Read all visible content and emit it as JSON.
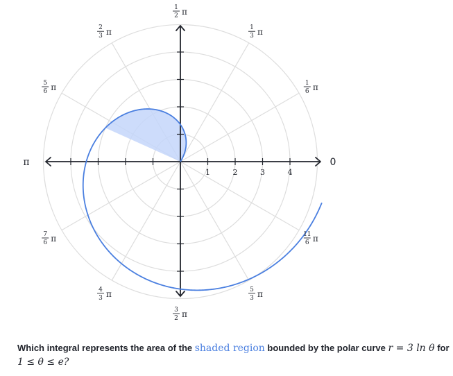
{
  "graph": {
    "angle_labels": [
      {
        "angle": 0,
        "num": "",
        "den": "",
        "symbol": "0"
      },
      {
        "angle": 30,
        "num": "1",
        "den": "6",
        "symbol": "π"
      },
      {
        "angle": 60,
        "num": "1",
        "den": "3",
        "symbol": "π"
      },
      {
        "angle": 90,
        "num": "1",
        "den": "2",
        "symbol": "π"
      },
      {
        "angle": 120,
        "num": "2",
        "den": "3",
        "symbol": "π"
      },
      {
        "angle": 150,
        "num": "5",
        "den": "6",
        "symbol": "π"
      },
      {
        "angle": 180,
        "num": "",
        "den": "",
        "symbol": "π"
      },
      {
        "angle": 210,
        "num": "7",
        "den": "6",
        "symbol": "π"
      },
      {
        "angle": 240,
        "num": "4",
        "den": "3",
        "symbol": "π"
      },
      {
        "angle": 270,
        "num": "3",
        "den": "2",
        "symbol": "π"
      },
      {
        "angle": 300,
        "num": "5",
        "den": "3",
        "symbol": "π"
      },
      {
        "angle": 330,
        "num": "11",
        "den": "6",
        "symbol": "π"
      }
    ],
    "radial_ticks": [
      "1",
      "2",
      "3",
      "4"
    ],
    "r_max": 5,
    "curve_color": "#4a7fe0",
    "shade_color": "#c4d6fa",
    "grid_color": "#dddddd",
    "curve": {
      "a": 3,
      "theta_start": 1.0,
      "theta_end": 6.0
    },
    "shaded": {
      "theta_start": 1.0,
      "theta_end": 2.71828
    }
  },
  "question": {
    "text_before": "Which integral represents the area of the ",
    "shaded_label": "shaded region",
    "text_after": " bounded by the polar curve ",
    "equation": "r = 3 ln θ",
    "text_for": " for",
    "condition": "1 ≤ θ ≤ e?"
  }
}
